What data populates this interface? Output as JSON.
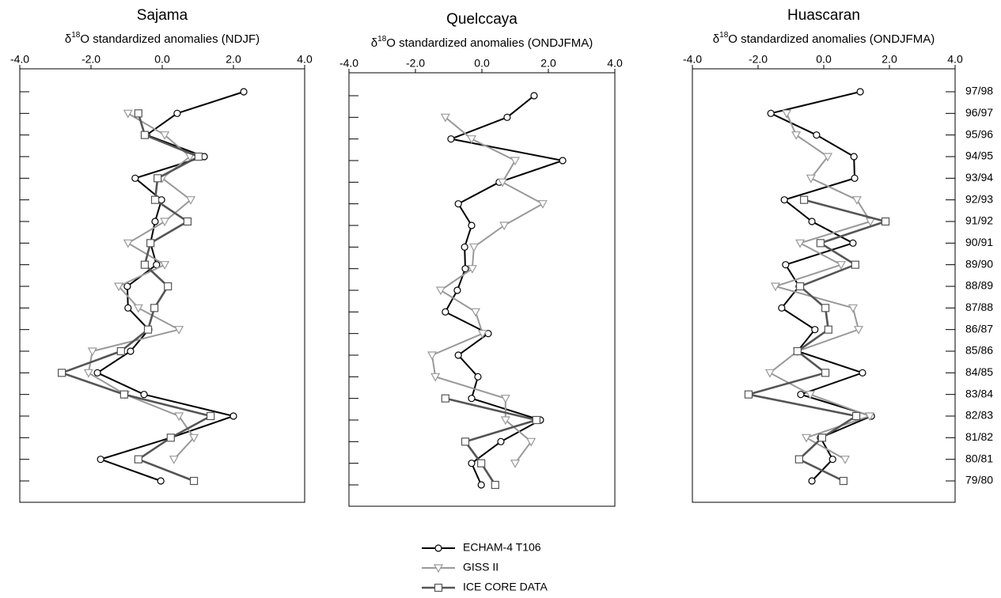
{
  "chart_data": [
    {
      "type": "line",
      "title": "Sajama",
      "subtitle": [
        "δ",
        "18",
        "O standardized anomalies (NDJF)"
      ],
      "categories": [
        null,
        null,
        null,
        null,
        null,
        null,
        null,
        null,
        null,
        null,
        null,
        null,
        null,
        null,
        null,
        null,
        null,
        null,
        null
      ],
      "xlim": [
        -4,
        4
      ],
      "xticks": [
        {
          "value": -4,
          "label": "-4.0"
        },
        {
          "value": -2,
          "label": "-2.0"
        },
        {
          "value": 0,
          "label": "0.0"
        },
        {
          "value": 2,
          "label": "2.0"
        },
        {
          "value": 4,
          "label": "4.0"
        }
      ],
      "series": [
        {
          "name": "ECHAM-4 T106",
          "color": "#000000",
          "marker": "circle",
          "values": [
            2.29,
            0.42,
            -0.44,
            1.18,
            -0.76,
            -0.02,
            -0.2,
            -0.33,
            -0.16,
            -0.98,
            -0.96,
            -0.38,
            -0.89,
            -1.82,
            -0.51,
            2.0,
            0.24,
            -1.73,
            -0.04
          ]
        },
        {
          "name": "GISS II",
          "color": "#999999",
          "marker": "triangle-down",
          "values": [
            null,
            -0.96,
            0.07,
            0.78,
            0,
            0.8,
            0.07,
            -0.96,
            0.07,
            -1.22,
            -0.67,
            0.47,
            -1.96,
            -2.07,
            -1.04,
            0.47,
            0.89,
            0.33,
            null
          ]
        },
        {
          "name": "ICE CORE DATA",
          "color": "#555555",
          "marker": "square",
          "values": [
            null,
            -0.67,
            -0.49,
            1.02,
            -0.13,
            -0.2,
            0.71,
            -0.33,
            -0.49,
            0.16,
            -0.22,
            -0.4,
            -1.16,
            -2.82,
            -1.07,
            1.36,
            0.24,
            -0.67,
            0.89
          ]
        }
      ]
    },
    {
      "type": "line",
      "title": "Quelccaya",
      "subtitle": [
        "δ",
        "18",
        "O standardized anomalies (ONDJFMA)"
      ],
      "categories": [
        null,
        null,
        null,
        null,
        null,
        null,
        null,
        null,
        null,
        null,
        null,
        null,
        null,
        null,
        null,
        null,
        null,
        null,
        null
      ],
      "xlim": [
        -4,
        4
      ],
      "xticks": [
        {
          "value": -4,
          "label": "-4.0"
        },
        {
          "value": -2,
          "label": "-2.0"
        },
        {
          "value": 0,
          "label": "0.0"
        },
        {
          "value": 2,
          "label": "2.0"
        },
        {
          "value": 4,
          "label": "4.0"
        }
      ],
      "series": [
        {
          "name": "ECHAM-4 T106",
          "color": "#000000",
          "marker": "circle",
          "values": [
            1.57,
            0.76,
            -0.93,
            2.43,
            0.52,
            -0.71,
            -0.31,
            -0.52,
            -0.5,
            -0.74,
            -1.1,
            0.19,
            -0.71,
            -0.12,
            -0.31,
            1.76,
            0.57,
            -0.31,
            -0.02
          ]
        },
        {
          "name": "GISS II",
          "color": "#999999",
          "marker": "triangle-down",
          "values": [
            null,
            -1.1,
            -0.31,
            1.0,
            0.62,
            1.83,
            0.67,
            -0.24,
            -0.29,
            -1.24,
            -0.19,
            0.02,
            -1.5,
            -1.4,
            0.71,
            0.71,
            1.48,
            1.0,
            null
          ]
        },
        {
          "name": "ICE CORE DATA",
          "color": "#555555",
          "marker": "square",
          "values": [
            null,
            null,
            null,
            null,
            null,
            null,
            null,
            null,
            null,
            null,
            null,
            null,
            null,
            null,
            -1.1,
            1.64,
            -0.5,
            -0.02,
            0.4
          ]
        }
      ]
    },
    {
      "type": "line",
      "title": "Huascaran",
      "subtitle": [
        "δ",
        "18",
        "O standardized anomalies (ONDJFMA)"
      ],
      "categories": [
        "97/98",
        "96/97",
        "95/96",
        "94/95",
        "93/94",
        "92/93",
        "91/92",
        "90/91",
        "89/90",
        "88/89",
        "87/88",
        "86/87",
        "85/86",
        "84/85",
        "83/84",
        "82/83",
        "81/82",
        "80/81",
        "79/80"
      ],
      "xlim": [
        -4,
        4
      ],
      "xticks": [
        {
          "value": -4,
          "label": "-4.0"
        },
        {
          "value": -2,
          "label": "-2.0"
        },
        {
          "value": 0,
          "label": "0.0"
        },
        {
          "value": 2,
          "label": "2.0"
        },
        {
          "value": 4,
          "label": "4.0"
        }
      ],
      "series": [
        {
          "name": "ECHAM-4 T106",
          "color": "#000000",
          "marker": "circle",
          "values": [
            1.11,
            -1.61,
            -0.22,
            0.92,
            0.94,
            -1.2,
            -0.36,
            0.89,
            -1.16,
            -0.75,
            -1.28,
            -0.27,
            -0.8,
            1.18,
            -0.7,
            1.45,
            -0.1,
            0.27,
            -0.36
          ]
        },
        {
          "name": "GISS II",
          "color": "#999999",
          "marker": "triangle-down",
          "values": [
            null,
            -1.13,
            -0.84,
            0.12,
            -0.39,
            1.01,
            1.42,
            -0.72,
            0.53,
            -1.47,
            0.89,
            1.06,
            -0.8,
            -1.64,
            -0.41,
            1.4,
            -0.53,
            0.65,
            null
          ]
        },
        {
          "name": "ICE CORE DATA",
          "color": "#555555",
          "marker": "square",
          "values": [
            null,
            null,
            null,
            null,
            null,
            -0.6,
            1.88,
            -0.1,
            0.96,
            -0.72,
            0.05,
            0.14,
            -0.8,
            0.05,
            -2.29,
            0.99,
            -0.05,
            -0.75,
            0.6
          ]
        }
      ]
    }
  ]
}
